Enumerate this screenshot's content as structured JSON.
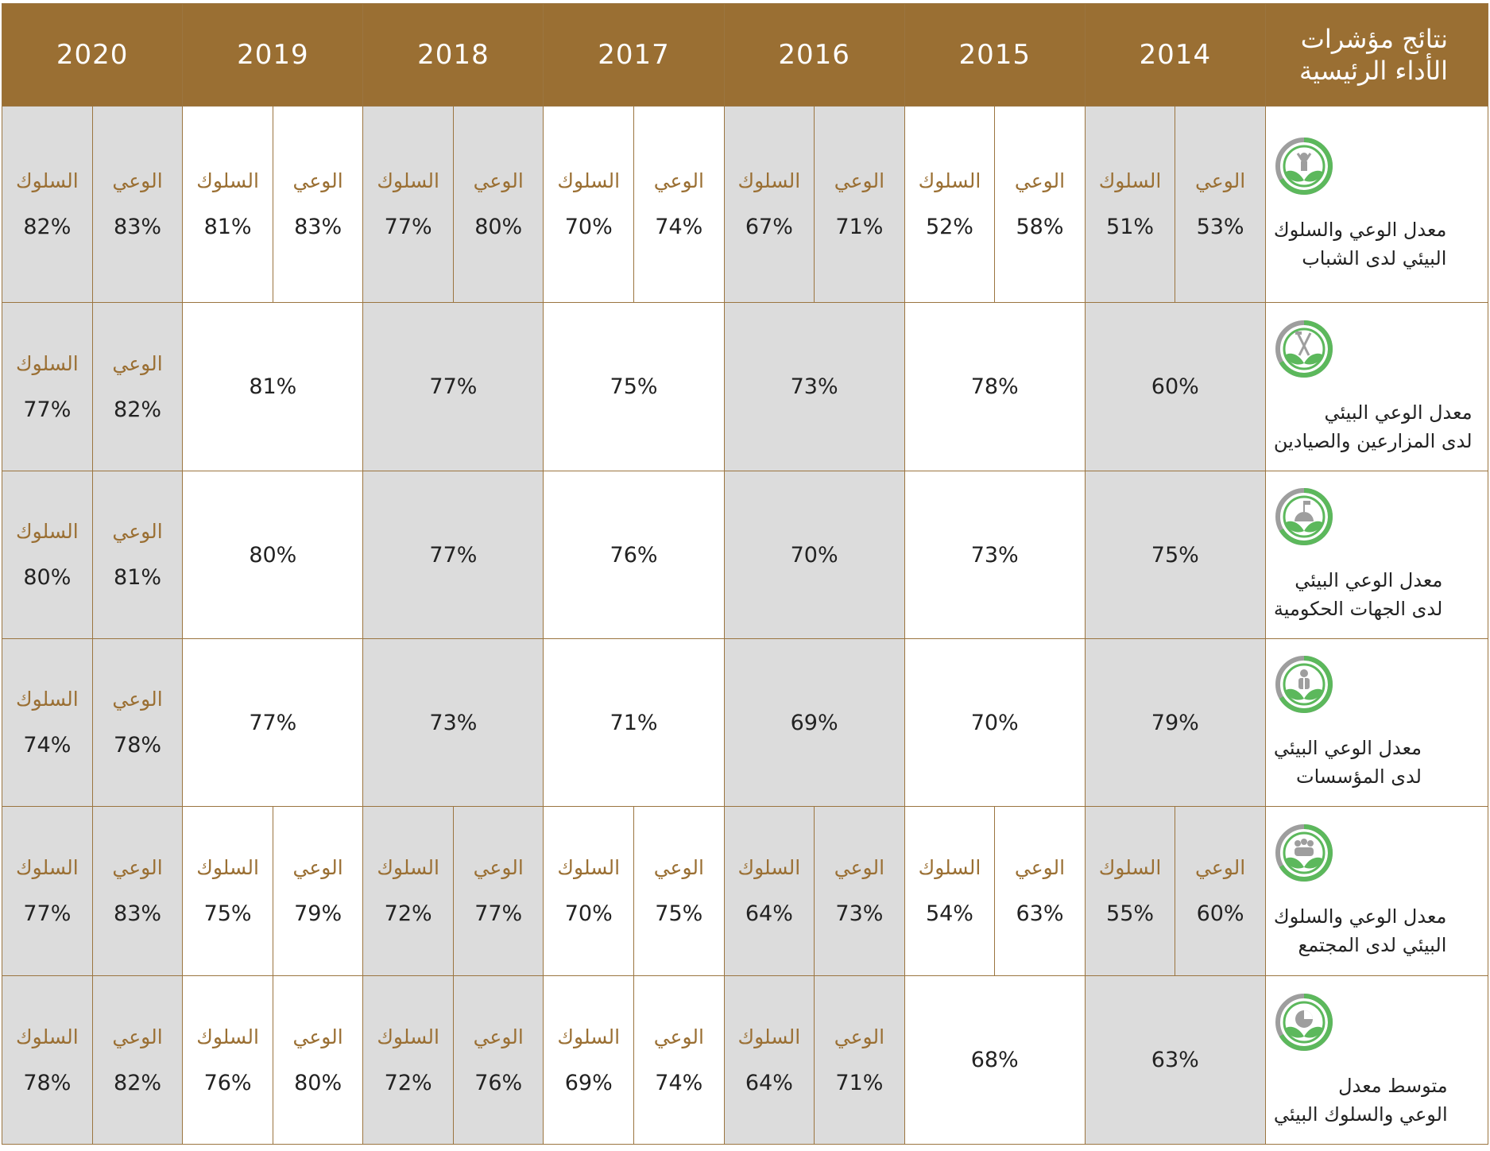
{
  "header": {
    "label": "نتائج مؤشرات الأداء الرئيسية",
    "years": [
      "2014",
      "2015",
      "2016",
      "2017",
      "2018",
      "2019",
      "2020"
    ]
  },
  "sub_labels": {
    "awareness": "الوعي",
    "behavior": "السلوك"
  },
  "rows": [
    {
      "label": "معدل الوعي والسلوك البيئي لدى الشباب",
      "label_line1": "معدل الوعي والسلوك",
      "label_line2": "البيئي لدى الشباب",
      "icon": "youth-leaf-icon",
      "cells": [
        {
          "awareness": "53%",
          "behavior": "51%"
        },
        {
          "awareness": "58%",
          "behavior": "52%"
        },
        {
          "awareness": "71%",
          "behavior": "67%"
        },
        {
          "awareness": "74%",
          "behavior": "70%"
        },
        {
          "awareness": "80%",
          "behavior": "77%"
        },
        {
          "awareness": "83%",
          "behavior": "81%"
        },
        {
          "awareness": "83%",
          "behavior": "82%"
        }
      ]
    },
    {
      "label": "معدل الوعي البيئي لدى المزارعين والصيادين",
      "label_line1": "معدل الوعي البيئي",
      "label_line2": "لدى المزارعين والصيادين",
      "icon": "farmer-tools-leaf-icon",
      "cells": [
        {
          "value": "60%"
        },
        {
          "value": "78%"
        },
        {
          "value": "73%"
        },
        {
          "value": "75%"
        },
        {
          "value": "77%"
        },
        {
          "value": "81%"
        },
        {
          "awareness": "82%",
          "behavior": "77%"
        }
      ]
    },
    {
      "label": "معدل الوعي البيئي لدى الجهات الحكومية",
      "label_line1": "معدل الوعي البيئي",
      "label_line2": "لدى الجهات الحكومية",
      "icon": "government-dome-leaf-icon",
      "cells": [
        {
          "value": "75%"
        },
        {
          "value": "73%"
        },
        {
          "value": "70%"
        },
        {
          "value": "76%"
        },
        {
          "value": "77%"
        },
        {
          "value": "80%"
        },
        {
          "awareness": "81%",
          "behavior": "80%"
        }
      ]
    },
    {
      "label": "معدل الوعي البيئي لدى المؤسسات",
      "label_line1": "معدل الوعي البيئي",
      "label_line2": "لدى المؤسسات",
      "icon": "business-person-leaf-icon",
      "cells": [
        {
          "value": "79%"
        },
        {
          "value": "70%"
        },
        {
          "value": "69%"
        },
        {
          "value": "71%"
        },
        {
          "value": "73%"
        },
        {
          "value": "77%"
        },
        {
          "awareness": "78%",
          "behavior": "74%"
        }
      ]
    },
    {
      "label": "معدل الوعي والسلوك البيئي لدى المجتمع",
      "label_line1": "معدل الوعي والسلوك",
      "label_line2": "البيئي لدى المجتمع",
      "icon": "community-group-leaf-icon",
      "cells": [
        {
          "awareness": "60%",
          "behavior": "55%"
        },
        {
          "awareness": "63%",
          "behavior": "54%"
        },
        {
          "awareness": "73%",
          "behavior": "64%"
        },
        {
          "awareness": "75%",
          "behavior": "70%"
        },
        {
          "awareness": "77%",
          "behavior": "72%"
        },
        {
          "awareness": "79%",
          "behavior": "75%"
        },
        {
          "awareness": "83%",
          "behavior": "77%"
        }
      ]
    },
    {
      "label": "متوسط معدل الوعي والسلوك البيئي",
      "label_line1": "متوسط معدل",
      "label_line2": "الوعي والسلوك البيئي",
      "icon": "average-pie-leaf-icon",
      "cells": [
        {
          "value": "63%"
        },
        {
          "value": "68%"
        },
        {
          "awareness": "71%",
          "behavior": "64%"
        },
        {
          "awareness": "74%",
          "behavior": "69%"
        },
        {
          "awareness": "76%",
          "behavior": "72%"
        },
        {
          "awareness": "80%",
          "behavior": "76%"
        },
        {
          "awareness": "82%",
          "behavior": "78%"
        }
      ]
    }
  ],
  "colors": {
    "header_bg": "#9a6f33",
    "shade": "#dcdcdc",
    "icon_green": "#5cb85c",
    "icon_gray": "#9e9e9e"
  }
}
